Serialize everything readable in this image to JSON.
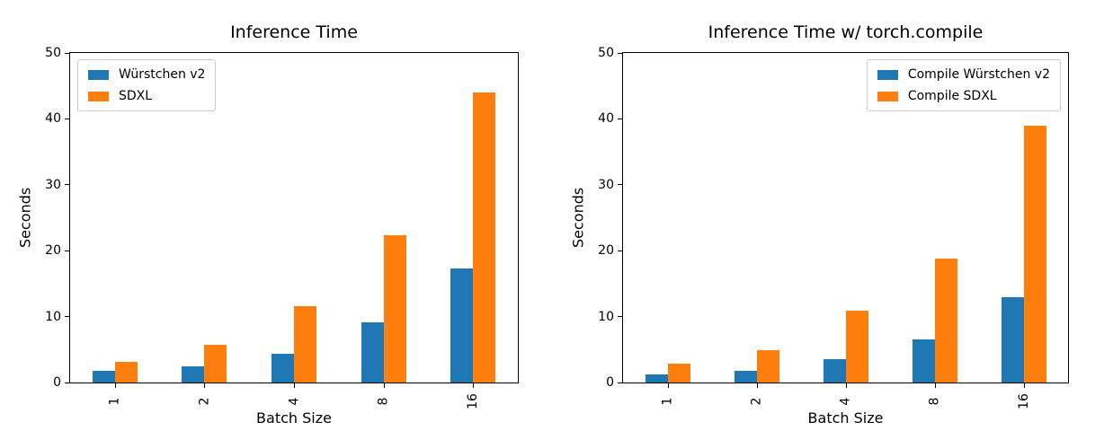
{
  "figure": {
    "background": "#ffffff",
    "spine_color": "#000000",
    "text_color": "#000000",
    "legend_border_color": "#cccccc"
  },
  "chart_data": [
    {
      "type": "bar",
      "title": "Inference Time",
      "xlabel": "Batch Size",
      "ylabel": "Seconds",
      "categories": [
        "1",
        "2",
        "4",
        "8",
        "16"
      ],
      "series": [
        {
          "name": "Würstchen v2",
          "color": "#1f77b4",
          "values": [
            1.8,
            2.4,
            4.4,
            9.1,
            17.3
          ]
        },
        {
          "name": "SDXL",
          "color": "#ff7f0e",
          "values": [
            3.2,
            5.7,
            11.6,
            22.3,
            44.0
          ]
        }
      ],
      "ylim": [
        0,
        50
      ],
      "yticks": [
        0,
        10,
        20,
        30,
        40,
        50
      ],
      "grid": false,
      "legend_position": "upper-left",
      "xtick_rotation": 90
    },
    {
      "type": "bar",
      "title": "Inference Time w/ torch.compile",
      "xlabel": "Batch Size",
      "ylabel": "Seconds",
      "categories": [
        "1",
        "2",
        "4",
        "8",
        "16"
      ],
      "series": [
        {
          "name": "Compile Würstchen v2",
          "color": "#1f77b4",
          "values": [
            1.2,
            1.8,
            3.5,
            6.6,
            12.9
          ]
        },
        {
          "name": "Compile SDXL",
          "color": "#ff7f0e",
          "values": [
            2.9,
            4.9,
            10.9,
            18.8,
            39.0
          ]
        }
      ],
      "ylim": [
        0,
        50
      ],
      "yticks": [
        0,
        10,
        20,
        30,
        40,
        50
      ],
      "grid": false,
      "legend_position": "upper-right",
      "xtick_rotation": 90
    }
  ]
}
